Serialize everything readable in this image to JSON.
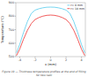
{
  "chart_data": {
    "type": "line",
    "xlabel": "x (mm)",
    "ylabel": "Temperature (°C)",
    "caption": "Figure 19 — Thickness temperature profiles at the end of filling for two radii",
    "x": [
      -4.4,
      -4.0,
      -3.5,
      -3.0,
      -2.5,
      -2.0,
      -1.5,
      -1.0,
      -0.5,
      0.0,
      0.5,
      1.0,
      1.5,
      2.0,
      2.5,
      3.0,
      3.5,
      4.0,
      4.4
    ],
    "series": [
      {
        "name": "r= 0 mm",
        "color": "#55ccee",
        "values": [
          530,
          590,
          680,
          760,
          820,
          845,
          855,
          862,
          866,
          867,
          866,
          862,
          855,
          845,
          820,
          760,
          680,
          590,
          530
        ]
      },
      {
        "name": "r= 10 mm",
        "color": "#ee3333",
        "values": [
          510,
          555,
          630,
          695,
          745,
          775,
          790,
          800,
          806,
          808,
          806,
          800,
          790,
          775,
          745,
          695,
          630,
          555,
          510
        ]
      }
    ],
    "xlim": [
      -4.5,
      4.5
    ],
    "ylim": [
      500,
      900
    ],
    "xticks": [
      -4,
      -2,
      0,
      2,
      4
    ],
    "yticks": [
      500,
      600,
      700,
      800,
      900
    ],
    "legend": "upper right"
  }
}
